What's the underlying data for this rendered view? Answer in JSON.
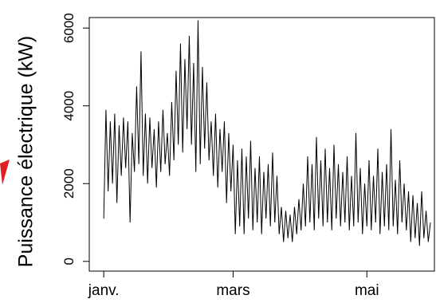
{
  "chart_data": {
    "type": "line",
    "y_label": "Puissance électrique (kW)",
    "categories": [
      "janv.",
      null,
      null,
      null,
      null,
      null,
      null,
      null,
      null,
      null,
      null,
      null,
      null,
      null,
      null,
      null,
      null,
      null,
      null,
      null,
      null,
      null,
      null,
      null,
      null,
      null,
      null,
      null,
      null,
      null,
      null,
      null,
      null,
      null,
      null,
      null,
      null,
      null,
      null,
      null,
      null,
      null,
      null,
      null,
      null,
      null,
      null,
      null,
      null,
      null,
      null,
      null,
      null,
      null,
      null,
      null,
      null,
      null,
      null,
      "mars",
      null,
      null,
      null,
      null,
      null,
      null,
      null,
      null,
      null,
      null,
      null,
      null,
      null,
      null,
      null,
      null,
      null,
      null,
      null,
      null,
      null,
      null,
      null,
      null,
      null,
      null,
      null,
      null,
      null,
      null,
      null,
      null,
      null,
      null,
      null,
      null,
      null,
      null,
      null,
      null,
      null,
      null,
      null,
      null,
      null,
      null,
      null,
      null,
      null,
      null,
      null,
      null,
      null,
      null,
      null,
      null,
      null,
      null,
      null,
      null,
      "mai",
      null,
      null,
      null,
      null,
      null,
      null,
      null,
      null,
      null,
      null,
      null,
      null,
      null,
      null,
      null,
      null,
      null,
      null,
      null,
      null,
      null,
      null,
      null,
      null,
      null,
      null,
      null,
      null,
      null
    ],
    "series": [
      {
        "color": "#000000",
        "values": [
          1100,
          3900,
          1800,
          3600,
          2000,
          3800,
          1500,
          3500,
          2200,
          3700,
          2400,
          3600,
          1000,
          3300,
          2300,
          4500,
          2500,
          5400,
          2200,
          3800,
          2000,
          3700,
          2400,
          3400,
          1900,
          3600,
          2300,
          3900,
          2500,
          3300,
          2200,
          4100,
          2600,
          4900,
          3000,
          5600,
          2800,
          5200,
          3400,
          5800,
          3000,
          5100,
          2300,
          6200,
          2500,
          5000,
          2900,
          4600,
          2600,
          3600,
          2200,
          3800,
          1900,
          3400,
          2300,
          3600,
          1500,
          3300,
          1800,
          3000,
          700,
          2600,
          900,
          2900,
          700,
          2700,
          1100,
          3100,
          800,
          2400,
          1000,
          2700,
          700,
          2300,
          1100,
          2500,
          900,
          2800,
          1000,
          2200,
          700,
          1400,
          500,
          1300,
          600,
          1200,
          500,
          1400,
          700,
          1600,
          800,
          2000,
          900,
          2700,
          1000,
          2500,
          800,
          3200,
          1100,
          2600,
          900,
          2900,
          1000,
          2400,
          800,
          3000,
          1100,
          2500,
          900,
          2300,
          1000,
          2700,
          800,
          2200,
          900,
          3300,
          1000,
          2400,
          700,
          2000,
          900,
          2600,
          800,
          2200,
          1000,
          2900,
          700,
          2300,
          900,
          2500,
          800,
          3400,
          900,
          2100,
          700,
          2600,
          1000,
          2000,
          800,
          1800,
          500,
          1700,
          600,
          1500,
          400,
          1800,
          600,
          1300,
          500,
          1000
        ]
      }
    ],
    "ylim": [
      -250,
      6270
    ],
    "yticks": [
      0,
      2000,
      4000,
      6000
    ]
  }
}
